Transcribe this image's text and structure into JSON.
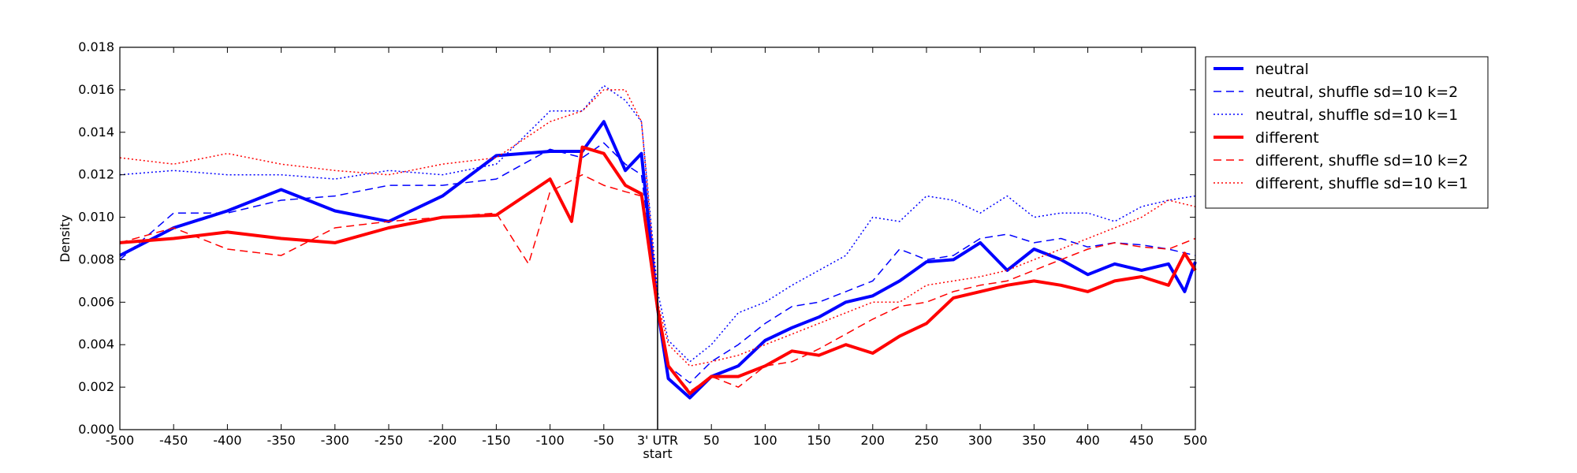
{
  "chart_data": {
    "type": "line",
    "title": "",
    "xlabel": "",
    "ylabel": "Density",
    "xlim": [
      -500,
      500
    ],
    "ylim": [
      0,
      0.018
    ],
    "x_ticks": [
      -500,
      -450,
      -400,
      -350,
      -300,
      -250,
      -200,
      -150,
      -100,
      -50,
      0,
      50,
      100,
      150,
      200,
      250,
      300,
      350,
      400,
      450,
      500
    ],
    "x_tick_labels": [
      "-500",
      "-450",
      "-400",
      "-350",
      "-300",
      "-250",
      "-200",
      "-150",
      "-100",
      "-50",
      "3' UTR",
      "50",
      "100",
      "150",
      "200",
      "250",
      "300",
      "350",
      "400",
      "450",
      "500"
    ],
    "x_tick_sublabel": "start",
    "y_ticks": [
      0.0,
      0.002,
      0.004,
      0.006,
      0.008,
      0.01,
      0.012,
      0.014,
      0.016,
      0.018
    ],
    "y_tick_labels": [
      "0.000",
      "0.002",
      "0.004",
      "0.006",
      "0.008",
      "0.010",
      "0.012",
      "0.014",
      "0.016",
      "0.018"
    ],
    "vertical_line_x": 0,
    "grid": false,
    "legend_position": "outside-right",
    "series": [
      {
        "name": "neutral",
        "color": "#0000ff",
        "style": "solid",
        "width": 4,
        "x": [
          -500,
          -450,
          -400,
          -350,
          -300,
          -250,
          -200,
          -150,
          -100,
          -70,
          -50,
          -30,
          -15,
          0,
          10,
          30,
          50,
          75,
          100,
          125,
          150,
          175,
          200,
          225,
          250,
          275,
          300,
          325,
          350,
          375,
          400,
          425,
          450,
          475,
          490,
          500
        ],
        "y": [
          0.0082,
          0.0095,
          0.0103,
          0.0113,
          0.0103,
          0.0098,
          0.011,
          0.0129,
          0.0131,
          0.0131,
          0.0145,
          0.0122,
          0.013,
          0.0057,
          0.0024,
          0.0015,
          0.0025,
          0.003,
          0.0042,
          0.0048,
          0.0053,
          0.006,
          0.0063,
          0.007,
          0.0079,
          0.008,
          0.0088,
          0.0075,
          0.0085,
          0.008,
          0.0073,
          0.0078,
          0.0075,
          0.0078,
          0.0065,
          0.0079
        ]
      },
      {
        "name": "neutral, shuffle sd=10 k=2",
        "color": "#0000ff",
        "style": "dashed",
        "width": 1.5,
        "x": [
          -500,
          -450,
          -400,
          -350,
          -300,
          -250,
          -200,
          -150,
          -100,
          -70,
          -50,
          -30,
          -15,
          0,
          10,
          30,
          50,
          75,
          100,
          125,
          150,
          175,
          200,
          225,
          250,
          275,
          300,
          325,
          350,
          375,
          400,
          425,
          450,
          475,
          500
        ],
        "y": [
          0.008,
          0.0102,
          0.0102,
          0.0108,
          0.011,
          0.0115,
          0.0115,
          0.0118,
          0.0132,
          0.0128,
          0.0135,
          0.0125,
          0.012,
          0.006,
          0.003,
          0.0022,
          0.0032,
          0.004,
          0.005,
          0.0058,
          0.006,
          0.0065,
          0.007,
          0.0085,
          0.008,
          0.0082,
          0.009,
          0.0092,
          0.0088,
          0.009,
          0.0086,
          0.0088,
          0.0087,
          0.0085,
          0.0082
        ]
      },
      {
        "name": "neutral, shuffle sd=10 k=1",
        "color": "#0000ff",
        "style": "dotted",
        "width": 1.5,
        "x": [
          -500,
          -450,
          -400,
          -350,
          -300,
          -250,
          -200,
          -150,
          -100,
          -70,
          -50,
          -30,
          -15,
          0,
          10,
          30,
          50,
          75,
          100,
          125,
          150,
          175,
          200,
          225,
          250,
          275,
          300,
          325,
          350,
          375,
          400,
          425,
          450,
          475,
          500
        ],
        "y": [
          0.012,
          0.0122,
          0.012,
          0.012,
          0.0118,
          0.0122,
          0.012,
          0.0125,
          0.015,
          0.015,
          0.0162,
          0.0155,
          0.0145,
          0.0065,
          0.0042,
          0.0032,
          0.004,
          0.0055,
          0.006,
          0.0068,
          0.0075,
          0.0082,
          0.01,
          0.0098,
          0.011,
          0.0108,
          0.0102,
          0.011,
          0.01,
          0.0102,
          0.0102,
          0.0098,
          0.0105,
          0.0108,
          0.011
        ]
      },
      {
        "name": "different",
        "color": "#ff0000",
        "style": "solid",
        "width": 4,
        "x": [
          -500,
          -450,
          -400,
          -350,
          -300,
          -250,
          -200,
          -150,
          -100,
          -80,
          -70,
          -50,
          -30,
          -15,
          0,
          10,
          30,
          50,
          75,
          100,
          125,
          150,
          175,
          200,
          225,
          250,
          275,
          300,
          325,
          350,
          375,
          400,
          425,
          450,
          475,
          490,
          500
        ],
        "y": [
          0.0088,
          0.009,
          0.0093,
          0.009,
          0.0088,
          0.0095,
          0.01,
          0.0101,
          0.0118,
          0.0098,
          0.0133,
          0.013,
          0.0115,
          0.0111,
          0.0057,
          0.003,
          0.0017,
          0.0025,
          0.0025,
          0.003,
          0.0037,
          0.0035,
          0.004,
          0.0036,
          0.0044,
          0.005,
          0.0062,
          0.0065,
          0.0068,
          0.007,
          0.0068,
          0.0065,
          0.007,
          0.0072,
          0.0068,
          0.0083,
          0.0075
        ]
      },
      {
        "name": "different, shuffle sd=10 k=2",
        "color": "#ff0000",
        "style": "dashed",
        "width": 1.5,
        "x": [
          -500,
          -450,
          -400,
          -350,
          -300,
          -250,
          -200,
          -150,
          -120,
          -100,
          -70,
          -50,
          -30,
          -15,
          0,
          10,
          30,
          50,
          75,
          100,
          125,
          150,
          175,
          200,
          225,
          250,
          275,
          300,
          325,
          350,
          375,
          400,
          425,
          450,
          475,
          500
        ],
        "y": [
          0.0088,
          0.0095,
          0.0085,
          0.0082,
          0.0095,
          0.0098,
          0.01,
          0.0102,
          0.0078,
          0.0112,
          0.012,
          0.0115,
          0.0112,
          0.011,
          0.0055,
          0.003,
          0.0018,
          0.0025,
          0.002,
          0.003,
          0.0032,
          0.0038,
          0.0045,
          0.0052,
          0.0058,
          0.006,
          0.0065,
          0.0068,
          0.007,
          0.0075,
          0.008,
          0.0085,
          0.0088,
          0.0086,
          0.0085,
          0.009
        ]
      },
      {
        "name": "different, shuffle sd=10 k=1",
        "color": "#ff0000",
        "style": "dotted",
        "width": 1.5,
        "x": [
          -500,
          -450,
          -400,
          -350,
          -300,
          -250,
          -200,
          -150,
          -100,
          -70,
          -50,
          -30,
          -15,
          0,
          10,
          30,
          50,
          75,
          100,
          125,
          150,
          175,
          200,
          225,
          250,
          275,
          300,
          325,
          350,
          375,
          400,
          425,
          450,
          475,
          500
        ],
        "y": [
          0.0128,
          0.0125,
          0.013,
          0.0125,
          0.0122,
          0.012,
          0.0125,
          0.0128,
          0.0145,
          0.015,
          0.016,
          0.016,
          0.0145,
          0.006,
          0.004,
          0.003,
          0.0032,
          0.0035,
          0.004,
          0.0045,
          0.005,
          0.0055,
          0.006,
          0.006,
          0.0068,
          0.007,
          0.0072,
          0.0075,
          0.008,
          0.0085,
          0.009,
          0.0095,
          0.01,
          0.0108,
          0.0105
        ]
      }
    ]
  }
}
